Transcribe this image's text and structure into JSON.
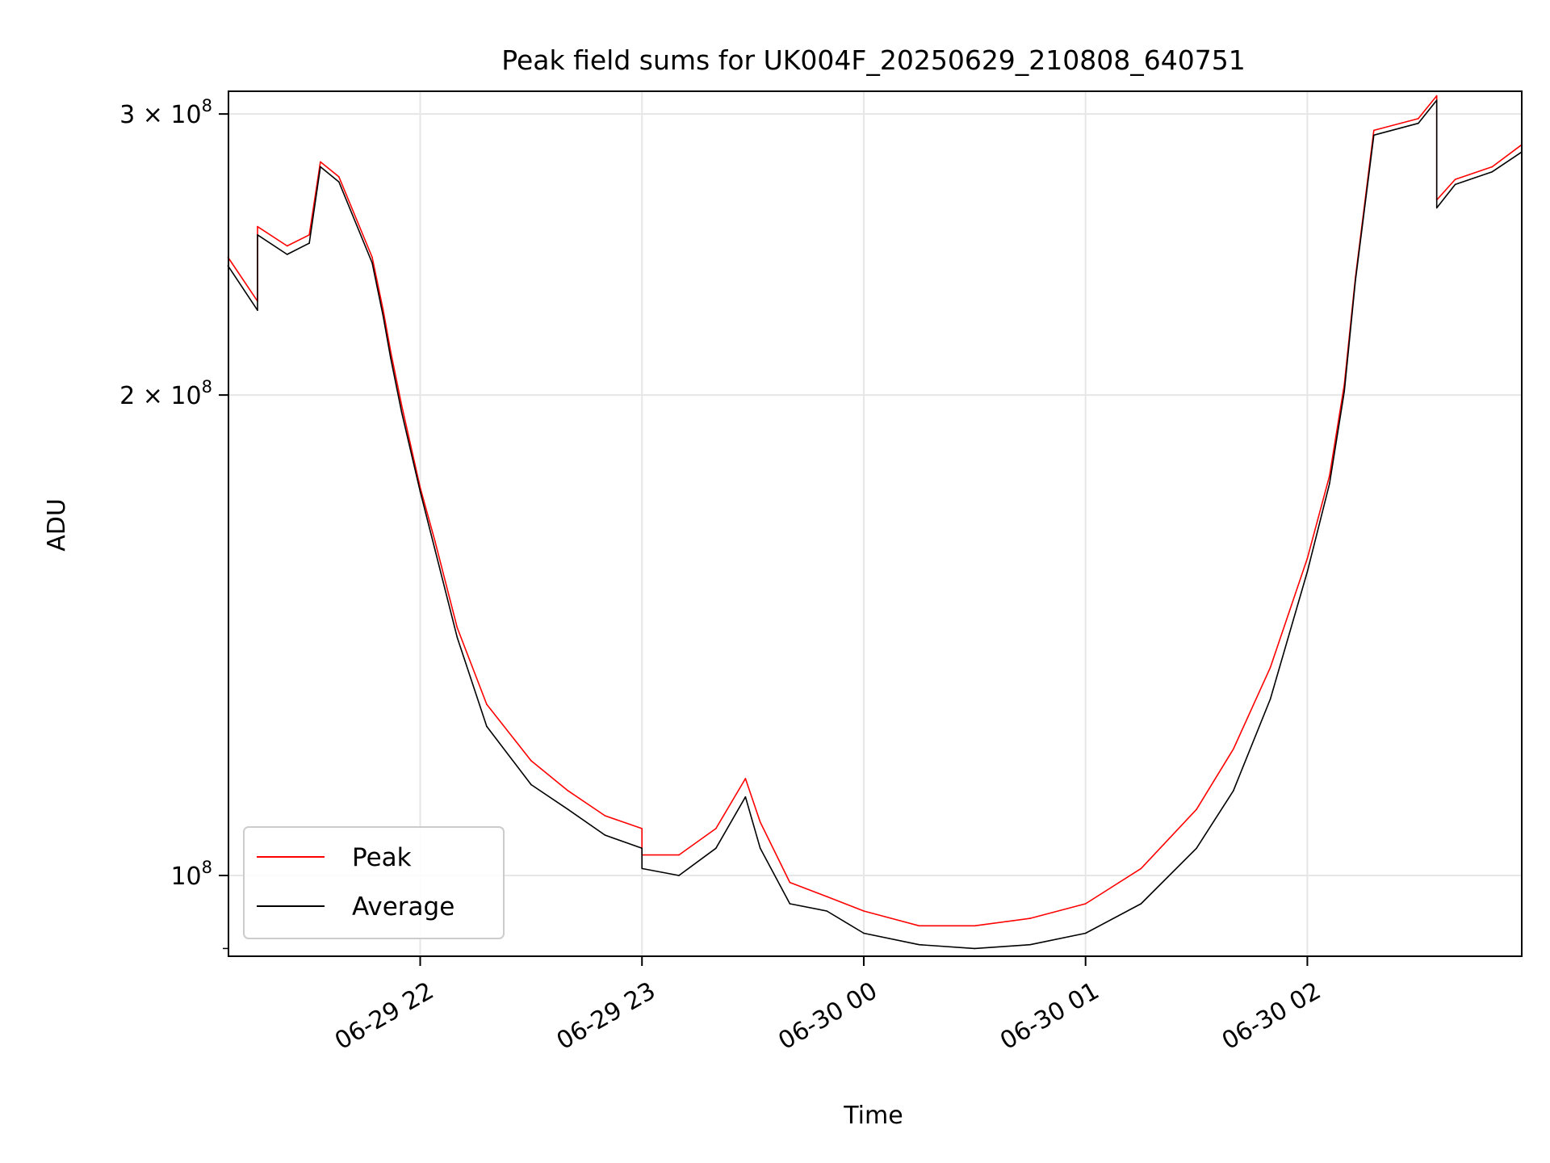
{
  "chart_data": {
    "type": "line",
    "title": "Peak field sums for UK004F_20250629_210808_640751",
    "xlabel": "Time",
    "ylabel": "ADU",
    "y_scale": "log",
    "ylim": [
      89000000,
      310000000
    ],
    "xlim": [
      "2025-06-29T21:08:08",
      "2025-06-30T02:58:00"
    ],
    "grid": true,
    "legend_position": "lower-left",
    "x_ticks": [
      {
        "value": "2025-06-29T22:00",
        "label": "06-29 22"
      },
      {
        "value": "2025-06-29T23:00",
        "label": "06-29 23"
      },
      {
        "value": "2025-06-30T00:00",
        "label": "06-30 00"
      },
      {
        "value": "2025-06-30T01:00",
        "label": "06-30 01"
      },
      {
        "value": "2025-06-30T02:00",
        "label": "06-30 02"
      }
    ],
    "y_ticks": [
      {
        "value": 100000000,
        "base": "10",
        "exp": "8"
      },
      {
        "value": 200000000,
        "base": "2 × 10",
        "exp": "8"
      },
      {
        "value": 300000000,
        "base": "3 × 10",
        "exp": "8"
      }
    ],
    "series": [
      {
        "name": "Peak",
        "color": "#ff0000",
        "x": [
          "2025-06-29T21:08",
          "2025-06-29T21:16",
          "2025-06-29T21:16",
          "2025-06-29T21:24",
          "2025-06-29T21:30",
          "2025-06-29T21:33",
          "2025-06-29T21:38",
          "2025-06-29T21:47",
          "2025-06-29T21:50",
          "2025-06-29T21:52",
          "2025-06-29T21:55",
          "2025-06-29T22:00",
          "2025-06-29T22:04",
          "2025-06-29T22:10",
          "2025-06-29T22:18",
          "2025-06-29T22:30",
          "2025-06-29T22:40",
          "2025-06-29T22:50",
          "2025-06-29T23:00",
          "2025-06-29T23:00",
          "2025-06-29T23:10",
          "2025-06-29T23:20",
          "2025-06-29T23:28",
          "2025-06-29T23:32",
          "2025-06-29T23:40",
          "2025-06-29T23:50",
          "2025-06-30T00:00",
          "2025-06-30T00:15",
          "2025-06-30T00:30",
          "2025-06-30T00:45",
          "2025-06-30T01:00",
          "2025-06-30T01:15",
          "2025-06-30T01:30",
          "2025-06-30T01:40",
          "2025-06-30T01:50",
          "2025-06-30T02:00",
          "2025-06-30T02:06",
          "2025-06-30T02:10",
          "2025-06-30T02:13",
          "2025-06-30T02:18",
          "2025-06-30T02:30",
          "2025-06-30T02:35",
          "2025-06-30T02:35",
          "2025-06-30T02:40",
          "2025-06-30T02:50",
          "2025-06-30T02:58"
        ],
        "y": [
          244000000,
          229000000,
          255000000,
          248000000,
          252000000,
          280000000,
          274000000,
          244000000,
          226000000,
          213000000,
          197000000,
          175000000,
          162000000,
          143000000,
          128000000,
          118000000,
          113000000,
          109000000,
          107000000,
          103000000,
          103000000,
          107000000,
          115000000,
          108000000,
          99000000,
          97000000,
          95000000,
          93000000,
          93000000,
          94000000,
          96000000,
          101000000,
          110000000,
          120000000,
          135000000,
          158000000,
          178000000,
          203000000,
          237000000,
          293000000,
          298000000,
          308000000,
          265000000,
          273000000,
          278000000,
          287000000
        ]
      },
      {
        "name": "Average",
        "color": "#000000",
        "x": [
          "2025-06-29T21:08",
          "2025-06-29T21:16",
          "2025-06-29T21:16",
          "2025-06-29T21:24",
          "2025-06-29T21:30",
          "2025-06-29T21:33",
          "2025-06-29T21:38",
          "2025-06-29T21:47",
          "2025-06-29T21:50",
          "2025-06-29T21:52",
          "2025-06-29T21:55",
          "2025-06-29T22:00",
          "2025-06-29T22:04",
          "2025-06-29T22:10",
          "2025-06-29T22:18",
          "2025-06-29T22:30",
          "2025-06-29T22:40",
          "2025-06-29T22:50",
          "2025-06-29T23:00",
          "2025-06-29T23:00",
          "2025-06-29T23:10",
          "2025-06-29T23:20",
          "2025-06-29T23:28",
          "2025-06-29T23:32",
          "2025-06-29T23:40",
          "2025-06-29T23:50",
          "2025-06-30T00:00",
          "2025-06-30T00:15",
          "2025-06-30T00:30",
          "2025-06-30T00:45",
          "2025-06-30T01:00",
          "2025-06-30T01:15",
          "2025-06-30T01:30",
          "2025-06-30T01:40",
          "2025-06-30T01:50",
          "2025-06-30T02:00",
          "2025-06-30T02:06",
          "2025-06-30T02:10",
          "2025-06-30T02:13",
          "2025-06-30T02:18",
          "2025-06-30T02:30",
          "2025-06-30T02:35",
          "2025-06-30T02:35",
          "2025-06-30T02:40",
          "2025-06-30T02:50",
          "2025-06-30T02:58"
        ],
        "y": [
          241000000,
          226000000,
          252000000,
          245000000,
          249000000,
          278000000,
          272000000,
          242000000,
          224000000,
          211000000,
          195000000,
          174000000,
          160000000,
          141000000,
          124000000,
          114000000,
          110000000,
          106000000,
          104000000,
          101000000,
          100000000,
          104000000,
          112000000,
          104000000,
          96000000,
          95000000,
          92000000,
          90500000,
          90000000,
          90500000,
          92000000,
          96000000,
          104000000,
          113000000,
          129000000,
          155000000,
          176000000,
          201000000,
          236000000,
          291000000,
          296000000,
          306000000,
          262000000,
          271000000,
          276000000,
          284000000
        ]
      }
    ]
  }
}
